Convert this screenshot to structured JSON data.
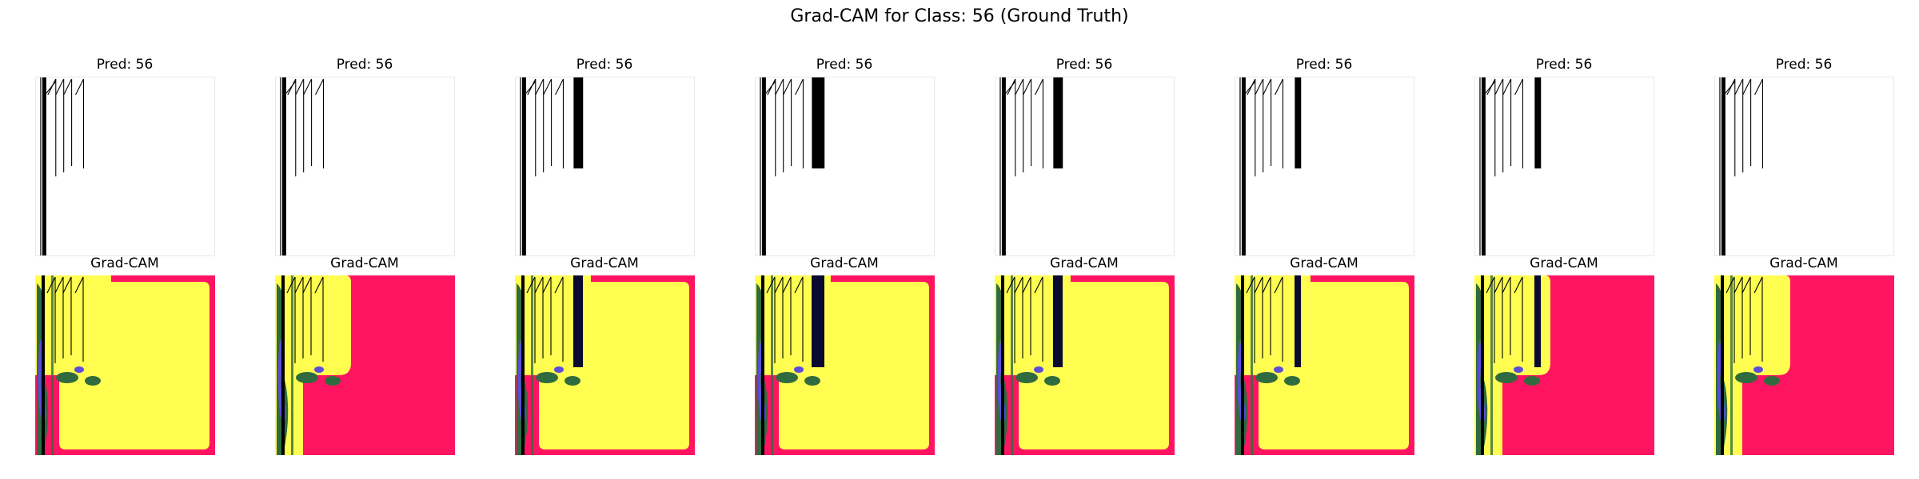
{
  "figure": {
    "suptitle": "Grad-CAM for Class: 56 (Ground Truth)",
    "prediction_titles": [
      "Pred: 56",
      "Pred: 56",
      "Pred: 56",
      "Pred: 56",
      "Pred: 56",
      "Pred: 56",
      "Pred: 56",
      "Pred: 56"
    ],
    "heatmap_titles": [
      "Grad-CAM",
      "Grad-CAM",
      "Grad-CAM",
      "Grad-CAM",
      "Grad-CAM",
      "Grad-CAM",
      "Grad-CAM",
      "Grad-CAM"
    ]
  },
  "colors": {
    "heat_background_red": "#ff1461",
    "heat_yellow": "#fffe50",
    "heat_green": "#2f6b3f",
    "heat_blue": "#5a4ed8",
    "heat_navy": "#0a0a30",
    "stroke": "#000000"
  },
  "panels": [
    {
      "yellow_region": "large",
      "black_bar": "none"
    },
    {
      "yellow_region": "small",
      "black_bar": "none"
    },
    {
      "yellow_region": "large",
      "black_bar": "narrow"
    },
    {
      "yellow_region": "large",
      "black_bar": "wide"
    },
    {
      "yellow_region": "large",
      "black_bar": "narrow"
    },
    {
      "yellow_region": "large",
      "black_bar": "thin"
    },
    {
      "yellow_region": "small",
      "black_bar": "thin"
    },
    {
      "yellow_region": "small",
      "black_bar": "none"
    }
  ]
}
